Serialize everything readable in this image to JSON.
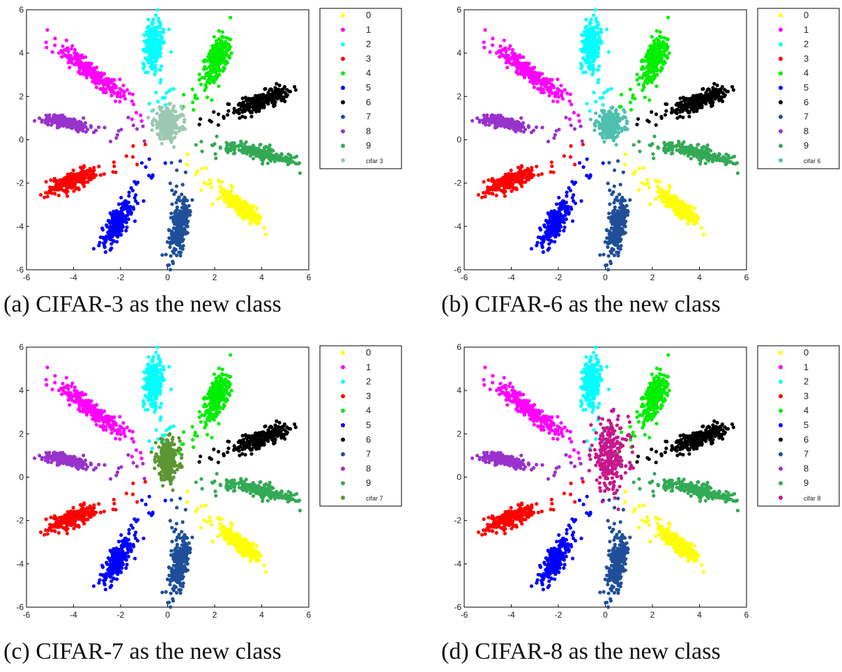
{
  "chart_data": [
    {
      "type": "scatter",
      "caption": "(a) CIFAR-3 as the new class",
      "xlim": [
        -6,
        6
      ],
      "ylim": [
        -6,
        6
      ],
      "xticks": [
        "-6",
        "-4",
        "-2",
        "0",
        "2",
        "4",
        "6"
      ],
      "yticks": [
        "-6",
        "-4",
        "-2",
        "0",
        "2",
        "4",
        "6"
      ],
      "legend_placement": "right",
      "legend": [
        "0",
        "1",
        "2",
        "3",
        "4",
        "5",
        "6",
        "7",
        "8",
        "9",
        "cifar 3"
      ],
      "new_class": {
        "name": "cifar 3",
        "color": "#9cc8b2",
        "center": [
          0.0,
          0.75
        ],
        "spread": [
          0.3,
          0.35
        ]
      }
    },
    {
      "type": "scatter",
      "caption": "(b) CIFAR-6 as the new class",
      "xlim": [
        -6,
        6
      ],
      "ylim": [
        -6,
        6
      ],
      "xticks": [
        "-6",
        "-4",
        "-2",
        "0",
        "2",
        "4",
        "6"
      ],
      "yticks": [
        "-6",
        "-4",
        "-2",
        "0",
        "2",
        "4",
        "6"
      ],
      "legend_placement": "right",
      "legend": [
        "0",
        "1",
        "2",
        "3",
        "4",
        "5",
        "6",
        "7",
        "8",
        "9",
        "cifar 6"
      ],
      "new_class": {
        "name": "cifar 6",
        "color": "#4fc0b0",
        "center": [
          0.2,
          0.7
        ],
        "spread": [
          0.3,
          0.3
        ]
      }
    },
    {
      "type": "scatter",
      "caption": "(c) CIFAR-7 as the new class",
      "xlim": [
        -6,
        6
      ],
      "ylim": [
        -6,
        6
      ],
      "xticks": [
        "-6",
        "-4",
        "-2",
        "0",
        "2",
        "4",
        "6"
      ],
      "yticks": [
        "-6",
        "-4",
        "-2",
        "0",
        "2",
        "4",
        "6"
      ],
      "legend_placement": "right",
      "legend": [
        "0",
        "1",
        "2",
        "3",
        "4",
        "5",
        "6",
        "7",
        "8",
        "9",
        "cifar 7"
      ],
      "new_class": {
        "name": "cifar 7",
        "color": "#5c9632",
        "center": [
          0.0,
          0.8
        ],
        "spread": [
          0.25,
          0.45
        ]
      }
    },
    {
      "type": "scatter",
      "caption": "(d) CIFAR-8 as the new class",
      "xlim": [
        -6,
        6
      ],
      "ylim": [
        -6,
        6
      ],
      "xticks": [
        "-6",
        "-4",
        "-2",
        "0",
        "2",
        "4",
        "6"
      ],
      "yticks": [
        "-6",
        "-4",
        "-2",
        "0",
        "2",
        "4",
        "6"
      ],
      "legend_placement": "right",
      "legend": [
        "0",
        "1",
        "2",
        "3",
        "4",
        "5",
        "6",
        "7",
        "8",
        "9",
        "cifar 8"
      ],
      "new_class": {
        "name": "cifar 8",
        "color": "#c8188c",
        "center": [
          0.2,
          1.0
        ],
        "spread": [
          0.4,
          0.8
        ]
      }
    }
  ],
  "clusters": [
    {
      "name": "0",
      "color": "#ffff00",
      "center": [
        3.1,
        -3.1
      ],
      "angle": -45,
      "len": 0.6,
      "wid": 0.18
    },
    {
      "name": "1",
      "color": "#ff00ff",
      "center": [
        -3.3,
        3.2
      ],
      "angle": -40,
      "len": 0.9,
      "wid": 0.18
    },
    {
      "name": "2",
      "color": "#00ffff",
      "center": [
        -0.6,
        4.4
      ],
      "angle": 85,
      "len": 0.55,
      "wid": 0.2
    },
    {
      "name": "3",
      "color": "#ff0000",
      "center": [
        -4.1,
        -1.9
      ],
      "angle": 25,
      "len": 0.55,
      "wid": 0.18
    },
    {
      "name": "4",
      "color": "#00ee00",
      "center": [
        2.1,
        3.8
      ],
      "angle": 70,
      "len": 0.6,
      "wid": 0.22
    },
    {
      "name": "5",
      "color": "#0000ff",
      "center": [
        -2.1,
        -3.8
      ],
      "angle": 60,
      "len": 0.55,
      "wid": 0.2
    },
    {
      "name": "6",
      "color": "#000000",
      "center": [
        4.0,
        1.8
      ],
      "angle": 25,
      "len": 0.6,
      "wid": 0.18
    },
    {
      "name": "7",
      "color": "#1f4f99",
      "center": [
        0.5,
        -4.0
      ],
      "angle": 80,
      "len": 0.7,
      "wid": 0.17
    },
    {
      "name": "8",
      "color": "#9933cc",
      "center": [
        -4.3,
        0.8
      ],
      "angle": -12,
      "len": 0.5,
      "wid": 0.12
    },
    {
      "name": "9",
      "color": "#33aa55",
      "center": [
        3.9,
        -0.6
      ],
      "angle": -15,
      "len": 0.8,
      "wid": 0.15
    }
  ]
}
